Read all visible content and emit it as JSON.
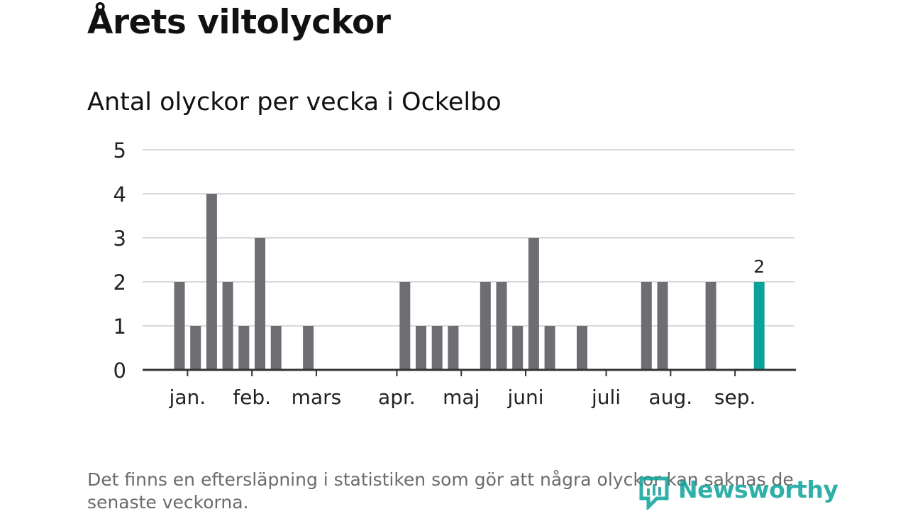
{
  "title": "Årets viltolyckor",
  "subtitle": "Antal olyckor per vecka i Ockelbo",
  "footnote": "Det finns en eftersläpning i statistiken som gör att några olyckor kan saknas de senaste veckorna.",
  "logo_text": "Newsworthy",
  "colors": {
    "bar": "#6e6d72",
    "highlight": "#0aa39a",
    "grid": "#d9d9d9",
    "axis": "#333333"
  },
  "chart_data": {
    "type": "bar",
    "x_unit": "week",
    "x": [
      1,
      2,
      3,
      4,
      5,
      6,
      7,
      8,
      9,
      10,
      11,
      12,
      13,
      14,
      15,
      16,
      17,
      18,
      19,
      20,
      21,
      22,
      23,
      24,
      25,
      26,
      27,
      28,
      29,
      30,
      31,
      32,
      33,
      34,
      35,
      36,
      37,
      38,
      39,
      40
    ],
    "values": [
      2,
      1,
      4,
      2,
      1,
      3,
      1,
      0,
      1,
      0,
      0,
      0,
      0,
      0,
      2,
      1,
      1,
      1,
      0,
      2,
      2,
      1,
      3,
      1,
      0,
      1,
      0,
      0,
      0,
      2,
      2,
      0,
      0,
      2,
      0,
      0,
      2,
      0,
      0,
      0
    ],
    "highlight_week": 37,
    "highlight_label": "2",
    "ylim": [
      0,
      5
    ],
    "yticks": [
      "0",
      "1",
      "2",
      "3",
      "4",
      "5"
    ],
    "month_labels": [
      {
        "label": "jan.",
        "week": 1.5
      },
      {
        "label": "feb.",
        "week": 5.5
      },
      {
        "label": "mars",
        "week": 9.5
      },
      {
        "label": "apr.",
        "week": 14.5
      },
      {
        "label": "maj",
        "week": 18.5
      },
      {
        "label": "juni",
        "week": 22.5
      },
      {
        "label": "juli",
        "week": 27.5
      },
      {
        "label": "aug.",
        "week": 31.5
      },
      {
        "label": "sep.",
        "week": 35.5
      }
    ],
    "grid": true,
    "legend": "none"
  }
}
